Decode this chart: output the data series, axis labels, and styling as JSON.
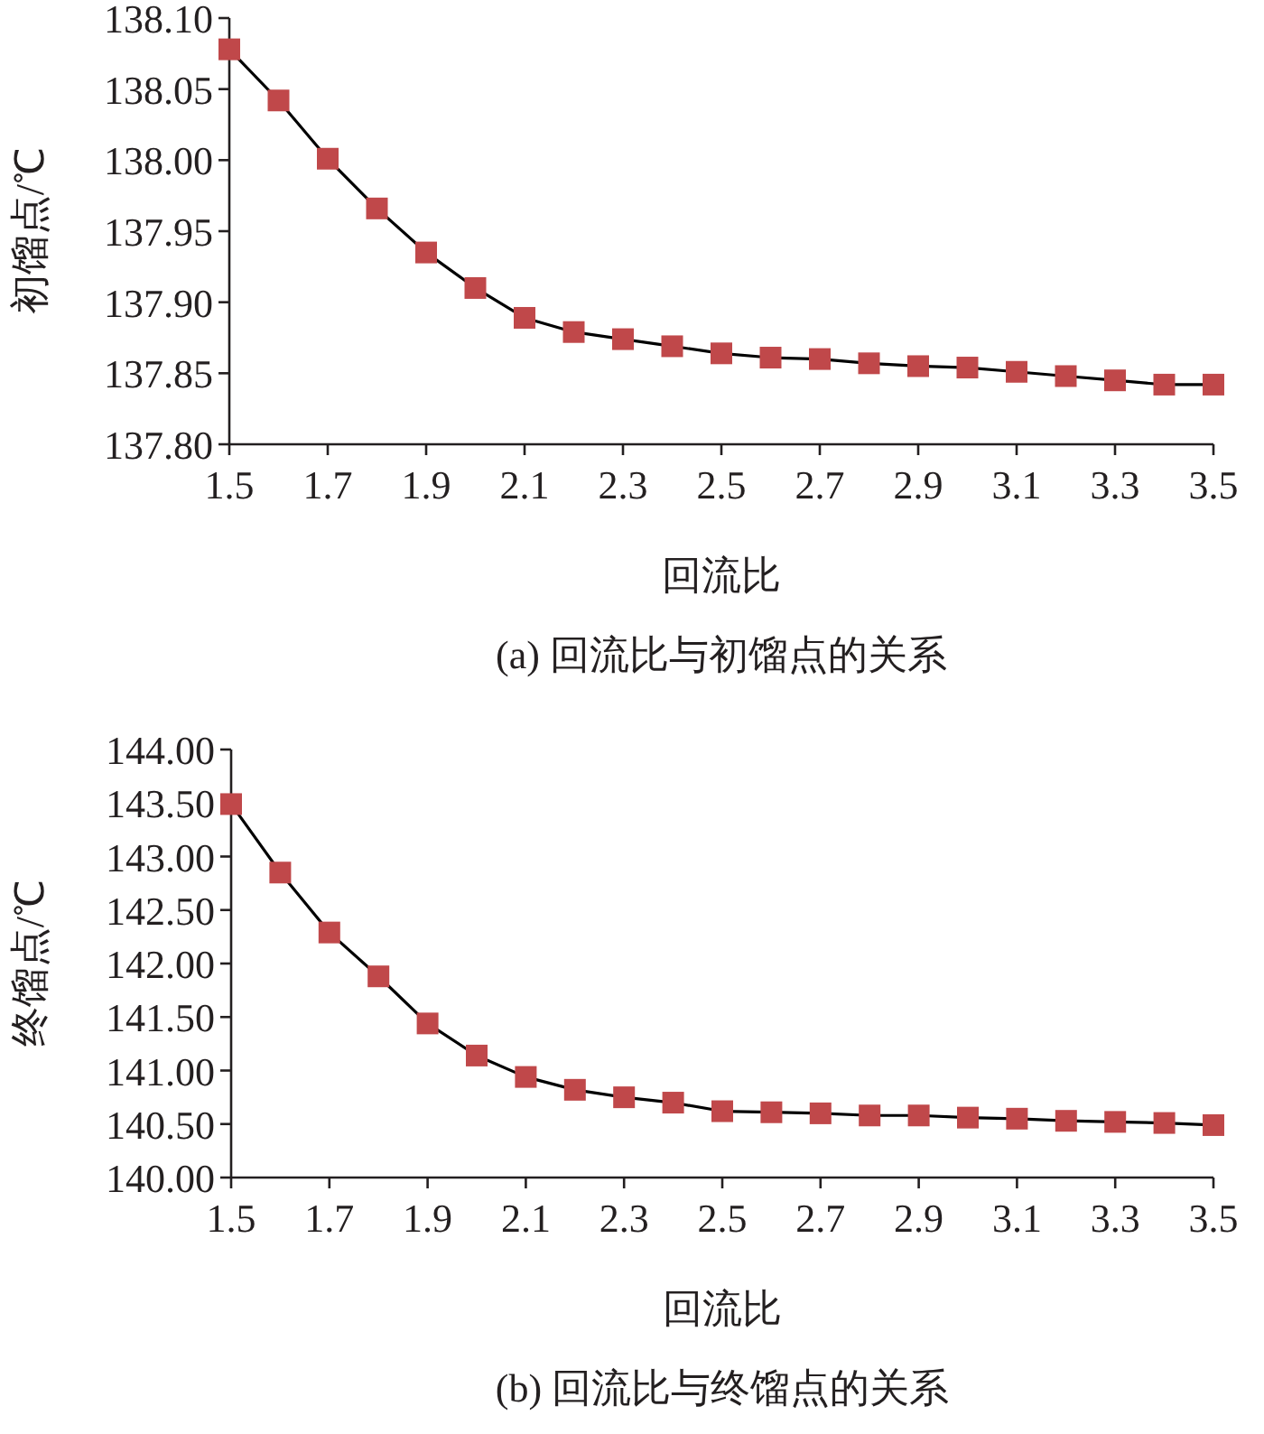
{
  "chart_data": [
    {
      "type": "line",
      "title": "(a) 回流比与初馏点的关系",
      "xlabel": "回流比",
      "ylabel": "初馏点/℃",
      "marker": "square",
      "line_style": "solid",
      "x": [
        1.5,
        1.6,
        1.7,
        1.8,
        1.9,
        2.0,
        2.1,
        2.2,
        2.3,
        2.4,
        2.5,
        2.6,
        2.7,
        2.8,
        2.9,
        3.0,
        3.1,
        3.2,
        3.3,
        3.4,
        3.5
      ],
      "series": [
        {
          "color": "#c0484a",
          "values": [
            138.078,
            138.042,
            138.001,
            137.966,
            137.935,
            137.91,
            137.889,
            137.879,
            137.874,
            137.869,
            137.864,
            137.861,
            137.86,
            137.857,
            137.855,
            137.854,
            137.851,
            137.848,
            137.845,
            137.842,
            137.842
          ]
        }
      ],
      "xlim": [
        1.5,
        3.5
      ],
      "xticks": [
        1.5,
        1.7,
        1.9,
        2.1,
        2.3,
        2.5,
        2.7,
        2.9,
        3.1,
        3.3,
        3.5
      ],
      "ylim": [
        137.8,
        138.1
      ],
      "yticks": [
        {
          "value": 137.8,
          "label": "137.80"
        },
        {
          "value": 137.85,
          "label": "137.85"
        },
        {
          "value": 137.9,
          "label": "137.90"
        },
        {
          "value": 137.95,
          "label": "137.95"
        },
        {
          "value": 138.0,
          "label": "138.00"
        },
        {
          "value": 138.05,
          "label": "138.05"
        },
        {
          "value": 138.1,
          "label": "138.10"
        }
      ]
    },
    {
      "type": "line",
      "title": "(b) 回流比与终馏点的关系",
      "xlabel": "回流比",
      "ylabel": "终馏点/℃",
      "marker": "square",
      "line_style": "solid",
      "x": [
        1.5,
        1.6,
        1.7,
        1.8,
        1.9,
        2.0,
        2.1,
        2.2,
        2.3,
        2.4,
        2.5,
        2.6,
        2.7,
        2.8,
        2.9,
        3.0,
        3.1,
        3.2,
        3.3,
        3.4,
        3.5
      ],
      "series": [
        {
          "color": "#c0484a",
          "values": [
            143.49,
            142.85,
            142.29,
            141.88,
            141.44,
            141.14,
            140.94,
            140.82,
            140.75,
            140.7,
            140.62,
            140.61,
            140.6,
            140.58,
            140.58,
            140.56,
            140.55,
            140.53,
            140.52,
            140.51,
            140.49
          ]
        }
      ],
      "xlim": [
        1.5,
        3.5
      ],
      "xticks": [
        1.5,
        1.7,
        1.9,
        2.1,
        2.3,
        2.5,
        2.7,
        2.9,
        3.1,
        3.3,
        3.5
      ],
      "ylim": [
        140.0,
        144.0
      ],
      "yticks": [
        {
          "value": 140.0,
          "label": "140.00"
        },
        {
          "value": 140.5,
          "label": "140.50"
        },
        {
          "value": 141.0,
          "label": "141.00"
        },
        {
          "value": 141.5,
          "label": "141.50"
        },
        {
          "value": 142.0,
          "label": "142.00"
        },
        {
          "value": 142.5,
          "label": "142.50"
        },
        {
          "value": 143.0,
          "label": "143.00"
        },
        {
          "value": 143.5,
          "label": "143.50"
        },
        {
          "value": 144.0,
          "label": "144.00"
        }
      ]
    }
  ]
}
